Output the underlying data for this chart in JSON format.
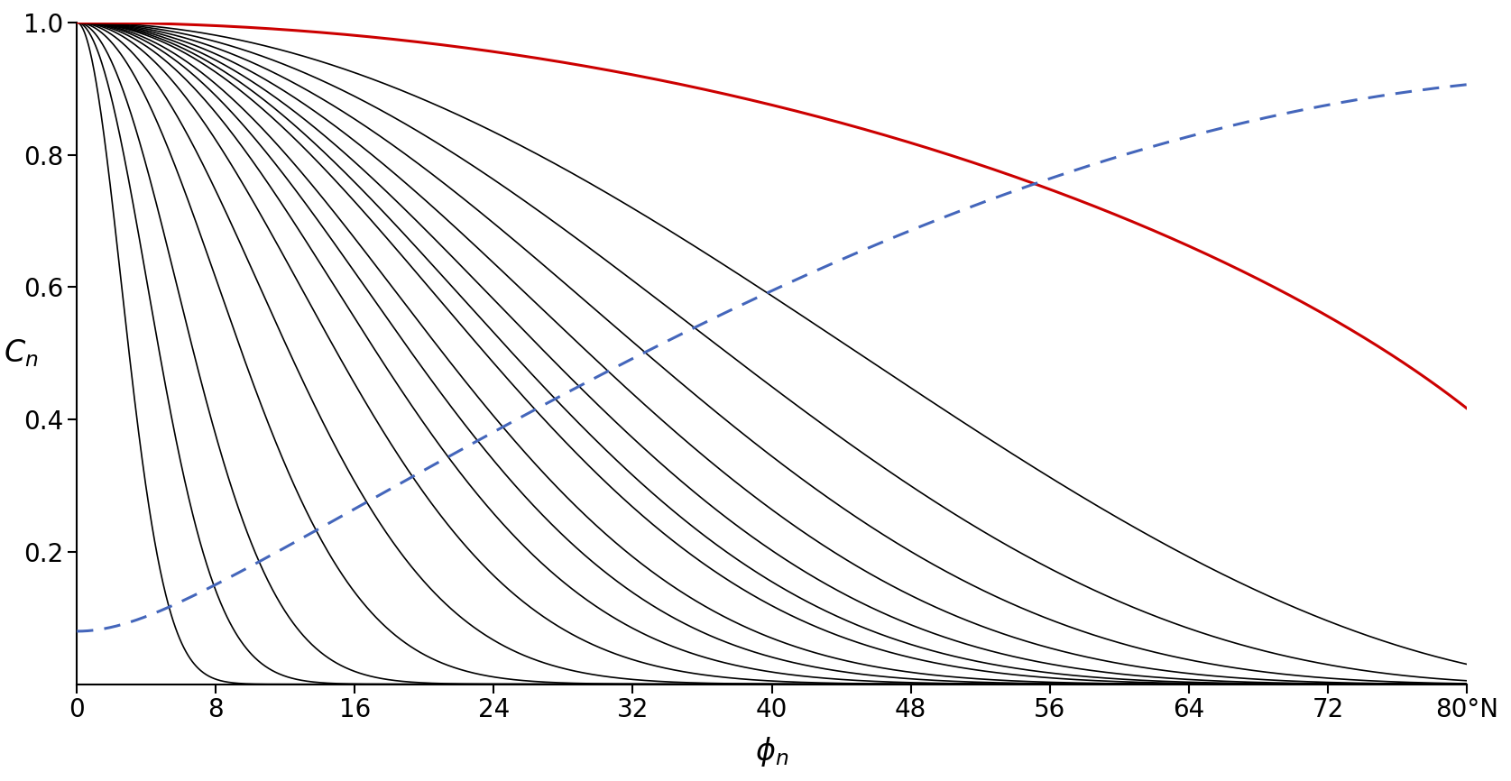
{
  "title": "",
  "xlabel": "$\\phi_n$",
  "ylabel": "$C_n$",
  "xlim": [
    0,
    80
  ],
  "ylim": [
    0,
    1.0
  ],
  "xticks": [
    0,
    8,
    16,
    24,
    32,
    40,
    48,
    56,
    64,
    72,
    80
  ],
  "xtick_labels": [
    "0",
    "8",
    "16",
    "24",
    "32",
    "40",
    "48",
    "56",
    "64",
    "72",
    "80°N"
  ],
  "yticks": [
    0.2,
    0.4,
    0.6,
    0.8,
    1.0
  ],
  "black_n_values": [
    2,
    3,
    4,
    5,
    6,
    7,
    8,
    10,
    12,
    15,
    20,
    30,
    50,
    100,
    200,
    500
  ],
  "red_n": 0.5,
  "blue_a": 0.08,
  "blue_b": 0.92,
  "figsize": [
    16.75,
    8.66
  ],
  "dpi": 100,
  "background_color": "#ffffff",
  "black_color": "#000000",
  "red_color": "#cc0000",
  "blue_color": "#4466bb",
  "linewidth_black": 1.2,
  "linewidth_red": 2.2,
  "linewidth_blue": 2.2
}
